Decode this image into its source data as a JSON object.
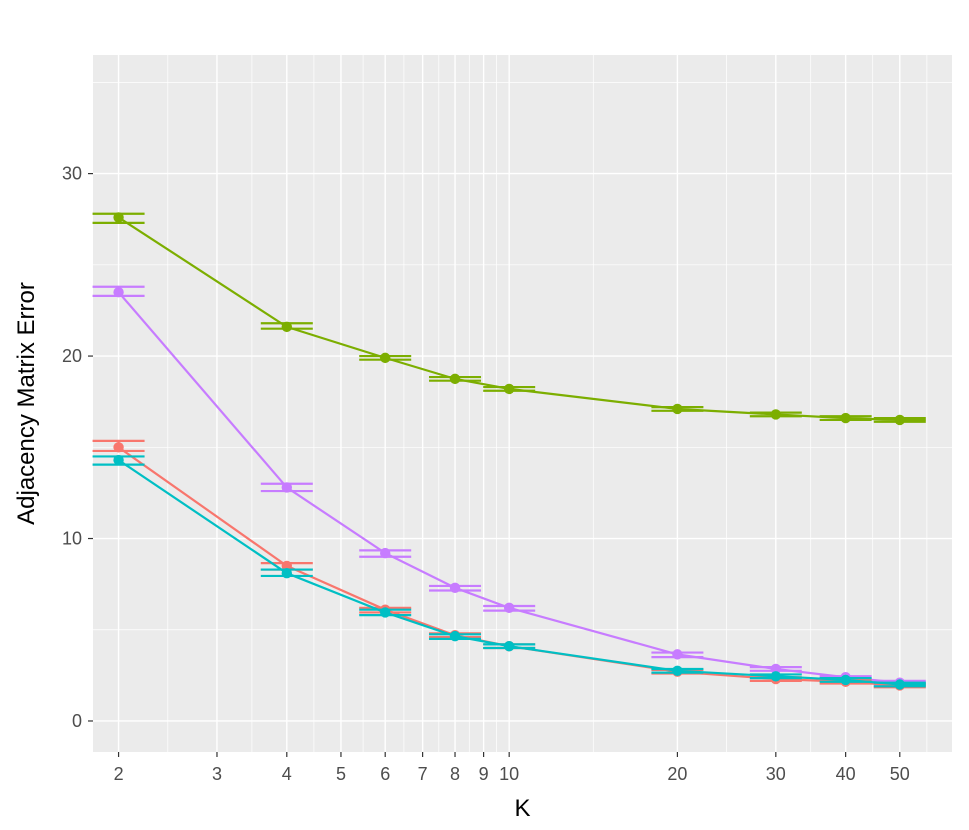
{
  "chart_data": {
    "type": "line",
    "title": "",
    "xlabel": "K",
    "ylabel": "Adjacency Matrix Error",
    "x_scale": "log",
    "x": [
      2,
      4,
      6,
      8,
      10,
      20,
      30,
      40,
      50
    ],
    "x_ticks": [
      2,
      3,
      4,
      5,
      6,
      7,
      8,
      9,
      10,
      20,
      30,
      40,
      50
    ],
    "x_tick_labels": [
      "2",
      "3",
      "4",
      "5",
      "6",
      "7",
      "8",
      "9",
      "10",
      "20",
      "30",
      "40",
      "50"
    ],
    "y_ticks": [
      0,
      10,
      20,
      30
    ],
    "y_tick_labels": [
      "0",
      "10",
      "20",
      "30"
    ],
    "ylim": [
      -1.7,
      36.5
    ],
    "grid": true,
    "legend": "none",
    "series": [
      {
        "color": "#7CAE00",
        "values": [
          27.6,
          21.6,
          19.9,
          18.75,
          18.2,
          17.1,
          16.8,
          16.6,
          16.5
        ],
        "error_low": [
          27.3,
          21.5,
          19.8,
          18.65,
          18.1,
          17.0,
          16.7,
          16.5,
          16.4
        ],
        "error_high": [
          27.8,
          21.8,
          20.0,
          18.85,
          18.3,
          17.2,
          16.9,
          16.7,
          16.6
        ]
      },
      {
        "color": "#C77CFF",
        "values": [
          23.5,
          12.8,
          9.2,
          7.3,
          6.2,
          3.65,
          2.85,
          2.4,
          2.1
        ],
        "error_low": [
          23.3,
          12.6,
          9.0,
          7.15,
          6.05,
          3.5,
          2.75,
          2.3,
          2.0
        ],
        "error_high": [
          23.8,
          13.0,
          9.35,
          7.4,
          6.3,
          3.75,
          2.95,
          2.45,
          2.2
        ]
      },
      {
        "color": "#F8766D",
        "values": [
          15.0,
          8.5,
          6.1,
          4.7,
          4.1,
          2.7,
          2.3,
          2.15,
          1.95
        ],
        "error_low": [
          14.8,
          8.3,
          5.95,
          4.6,
          4.0,
          2.6,
          2.2,
          2.05,
          1.85
        ],
        "error_high": [
          15.35,
          8.65,
          6.2,
          4.8,
          4.2,
          2.8,
          2.4,
          2.25,
          2.05
        ]
      },
      {
        "color": "#00BFC4",
        "values": [
          14.3,
          8.1,
          5.95,
          4.65,
          4.1,
          2.75,
          2.45,
          2.25,
          2.0
        ],
        "error_low": [
          14.05,
          7.95,
          5.8,
          4.5,
          4.0,
          2.65,
          2.35,
          2.15,
          1.9
        ],
        "error_high": [
          14.5,
          8.3,
          6.1,
          4.75,
          4.2,
          2.85,
          2.55,
          2.35,
          2.1
        ]
      }
    ]
  }
}
